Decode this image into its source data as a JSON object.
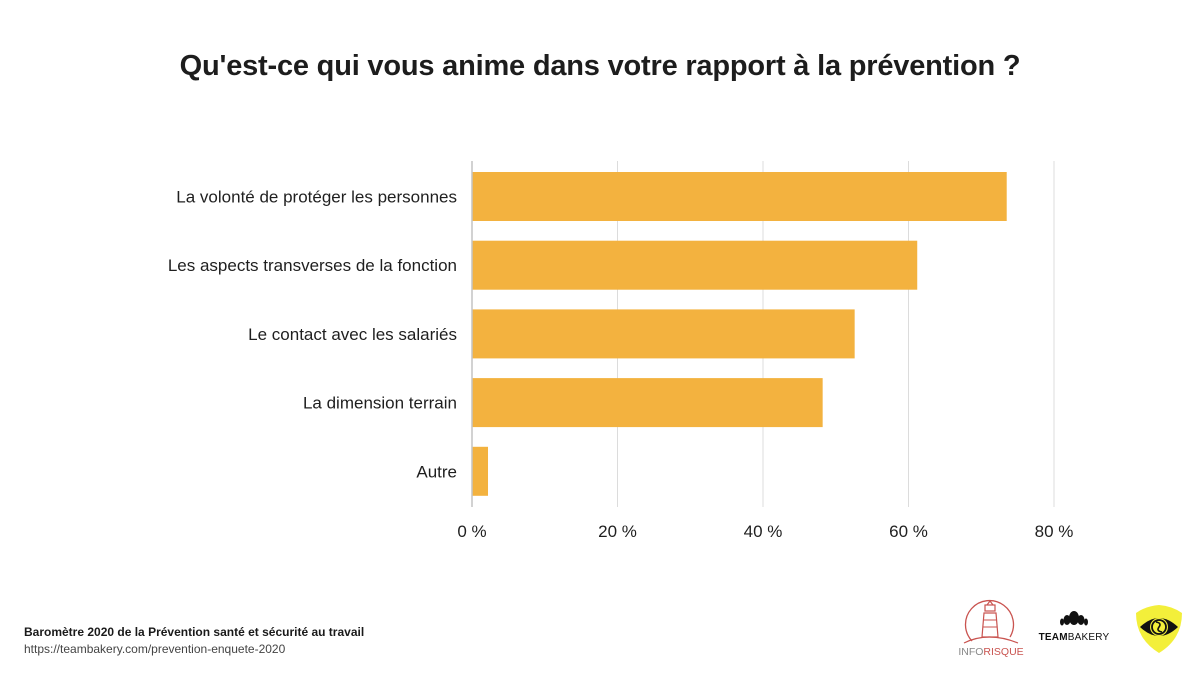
{
  "chart_data": {
    "type": "bar",
    "orientation": "horizontal",
    "title": "Qu'est-ce qui vous anime dans votre rapport à la prévention ?",
    "categories": [
      "La volonté de protéger les personnes",
      "Les aspects transverses de la fonction",
      "Le contact avec les salariés",
      "La dimension terrain",
      "Autre"
    ],
    "values": [
      73.5,
      61.2,
      52.6,
      48.2,
      2.2
    ],
    "unit": "%",
    "xlabel": "",
    "ylabel": "",
    "xlim": [
      0,
      80
    ],
    "xticks": [
      0,
      20,
      40,
      60,
      80
    ],
    "xtick_labels": [
      "0 %",
      "20 %",
      "40 %",
      "60 %",
      "80 %"
    ],
    "grid": true,
    "legend": "none",
    "bar_color": "#F3B23F"
  },
  "footer": {
    "source": "Baromètre 2020 de la Prévention santé et sécurité au travail",
    "url": "https://teambakery.com/prevention-enquete-2020"
  },
  "logos": {
    "inforisque": {
      "prefix": "INFO",
      "suffix": "RISQUE",
      "icon": "lighthouse-icon",
      "color": "#c9534f"
    },
    "teambakery": {
      "bold": "TEAM",
      "light": "BAKERY",
      "icon": "croissant-icon"
    },
    "shield": {
      "icon": "eye-shield-icon",
      "color": "#f3ef3a"
    }
  }
}
